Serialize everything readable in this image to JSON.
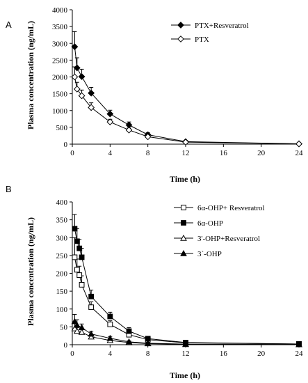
{
  "chart_data": [
    {
      "panel": "A",
      "type": "line",
      "xlabel": "Time (h)",
      "ylabel": "Plasma concentration (ng/mL)",
      "xlim": [
        0,
        24
      ],
      "ylim": [
        0,
        4000
      ],
      "xticks": [
        0,
        4,
        8,
        12,
        16,
        20,
        24
      ],
      "yticks": [
        0,
        500,
        1000,
        1500,
        2000,
        2500,
        3000,
        3500,
        4000
      ],
      "legend_position": "top-right",
      "grid": false,
      "series": [
        {
          "name": "PTX+Resveratrol",
          "marker": "filled-diamond",
          "x": [
            0.25,
            0.5,
            1,
            2,
            4,
            6,
            8,
            12,
            24
          ],
          "y": [
            2900,
            2270,
            2010,
            1520,
            900,
            570,
            280,
            75,
            10
          ],
          "error": [
            450,
            300,
            220,
            170,
            110,
            90,
            60,
            20,
            5
          ]
        },
        {
          "name": "PTX",
          "marker": "open-diamond",
          "x": [
            0.25,
            0.5,
            1,
            2,
            4,
            6,
            8,
            12,
            24
          ],
          "y": [
            2000,
            1640,
            1440,
            1090,
            660,
            420,
            220,
            60,
            8
          ],
          "error": [
            300,
            200,
            170,
            140,
            80,
            60,
            40,
            15,
            4
          ]
        }
      ]
    },
    {
      "panel": "B",
      "type": "line",
      "xlabel": "Time (h)",
      "ylabel": "Plasma concentration (ng/mL)",
      "xlim": [
        0,
        24
      ],
      "ylim": [
        0,
        400
      ],
      "xticks": [
        0,
        4,
        8,
        12,
        16,
        20,
        24
      ],
      "yticks": [
        0,
        50,
        100,
        150,
        200,
        250,
        300,
        350,
        400
      ],
      "legend_position": "top-right",
      "grid": false,
      "series": [
        {
          "name": "6α-OHP+ Resveratrol",
          "marker": "open-square",
          "x": [
            0.25,
            0.5,
            0.75,
            1,
            2,
            4,
            6,
            8,
            12,
            24
          ],
          "y": [
            245,
            210,
            195,
            168,
            105,
            57,
            28,
            14,
            5,
            2
          ],
          "error": [
            55,
            30,
            25,
            25,
            15,
            10,
            8,
            4,
            2,
            1
          ]
        },
        {
          "name": "6α-OHP",
          "marker": "filled-square",
          "x": [
            0.25,
            0.5,
            0.75,
            1,
            2,
            4,
            6,
            8,
            12,
            24
          ],
          "y": [
            325,
            290,
            270,
            245,
            135,
            79,
            38,
            17,
            6,
            2
          ],
          "error": [
            40,
            35,
            25,
            25,
            18,
            12,
            10,
            5,
            2,
            1
          ]
        },
        {
          "name": "3'-OHP+Resveratrol",
          "marker": "open-triangle",
          "x": [
            0.25,
            0.5,
            1,
            2,
            4,
            6,
            8,
            12,
            24
          ],
          "y": [
            45,
            38,
            35,
            22,
            12,
            6,
            3,
            1,
            0.5
          ],
          "error": [
            15,
            10,
            8,
            6,
            4,
            3,
            2,
            1,
            0.5
          ]
        },
        {
          "name": "3`-OHP",
          "marker": "filled-triangle",
          "x": [
            0.25,
            0.5,
            1,
            2,
            4,
            6,
            8,
            12,
            24
          ],
          "y": [
            65,
            55,
            48,
            30,
            18,
            8,
            4,
            1.5,
            0.5
          ],
          "error": [
            20,
            15,
            10,
            8,
            5,
            3,
            2,
            1,
            0.5
          ]
        }
      ]
    }
  ]
}
